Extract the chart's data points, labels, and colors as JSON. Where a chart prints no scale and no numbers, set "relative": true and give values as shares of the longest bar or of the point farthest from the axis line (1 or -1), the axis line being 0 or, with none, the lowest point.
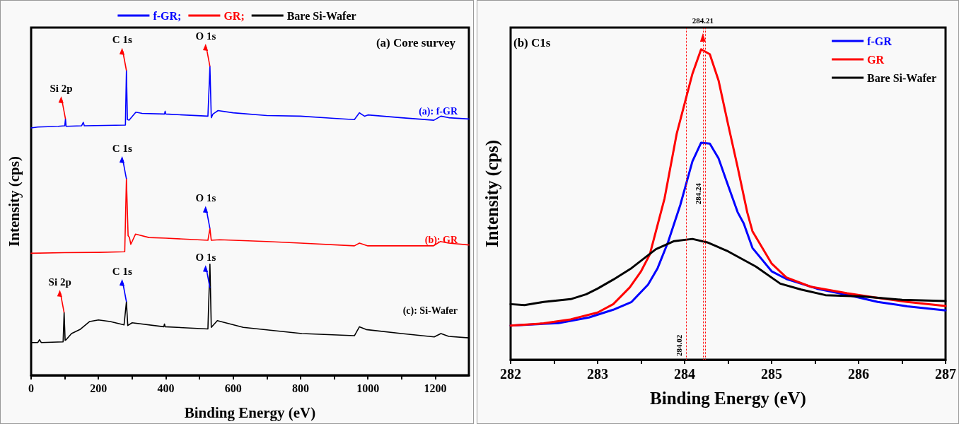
{
  "chart_data": [
    {
      "type": "line",
      "title": "(a) Core survey",
      "xlabel": "Binding Energy (eV)",
      "ylabel": "Intensity (cps)",
      "relative": true,
      "legend": "top",
      "xlim": [
        0,
        1300
      ],
      "xticks": [
        0,
        {
          "value": 100,
          "label": null
        },
        200,
        {
          "value": 300,
          "label": null
        },
        400,
        {
          "value": 500,
          "label": null
        },
        600,
        {
          "value": 700,
          "label": null
        },
        800,
        {
          "value": 900,
          "label": null
        },
        1000,
        {
          "value": 1100,
          "label": null
        },
        1200
      ],
      "series": [
        {
          "name": "f-GR;",
          "color": "#0000ff",
          "x": [
            0,
            20,
            80,
            100,
            102,
            104,
            150,
            155,
            158,
            280,
            283,
            286,
            291,
            311,
            330,
            396,
            398,
            400,
            525,
            531,
            535,
            540,
            555,
            600,
            700,
            800,
            900,
            960,
            975,
            990,
            1000,
            1100,
            1196,
            1217,
            1240,
            1300
          ],
          "values": [
            0.801,
            0.804,
            0.806,
            0.808,
            0.83,
            0.806,
            0.808,
            0.819,
            0.808,
            0.81,
            0.987,
            0.828,
            0.826,
            0.852,
            0.848,
            0.846,
            0.855,
            0.846,
            0.839,
            1.0,
            0.834,
            0.846,
            0.857,
            0.85,
            0.841,
            0.839,
            0.832,
            0.828,
            0.85,
            0.839,
            0.843,
            0.834,
            0.826,
            0.839,
            0.834,
            0.83
          ]
        },
        {
          "name": "GR;",
          "color": "#ff0000",
          "x": [
            0,
            100,
            200,
            278,
            283,
            288,
            292,
            296,
            310,
            350,
            400,
            525,
            531,
            535,
            560,
            700,
            800,
            960,
            975,
            1000,
            1100,
            1195,
            1215,
            1240,
            1300
          ],
          "values": [
            0.395,
            0.397,
            0.398,
            0.4,
            0.636,
            0.452,
            0.446,
            0.424,
            0.457,
            0.446,
            0.444,
            0.437,
            0.475,
            0.437,
            0.439,
            0.433,
            0.428,
            0.419,
            0.428,
            0.419,
            0.419,
            0.419,
            0.433,
            0.428,
            0.422
          ]
        },
        {
          "name": "Bare Si-Wafer",
          "color": "#000000",
          "x": [
            0,
            20,
            25,
            30,
            95,
            98,
            101,
            104,
            120,
            145,
            174,
            200,
            235,
            276,
            283,
            287,
            300,
            394,
            396,
            398,
            525,
            531,
            535,
            553,
            630,
            804,
            960,
            975,
            995,
            1100,
            1197,
            1217,
            1240,
            1300
          ],
          "values": [
            0.106,
            0.106,
            0.115,
            0.106,
            0.108,
            0.203,
            0.113,
            0.115,
            0.135,
            0.148,
            0.174,
            0.179,
            0.174,
            0.163,
            0.238,
            0.161,
            0.17,
            0.157,
            0.166,
            0.157,
            0.15,
            0.36,
            0.155,
            0.177,
            0.155,
            0.135,
            0.128,
            0.157,
            0.148,
            0.135,
            0.124,
            0.135,
            0.126,
            0.121
          ]
        }
      ],
      "annotations": [
        {
          "text": "Si 2p",
          "x": 102,
          "y": 0.83
        },
        {
          "text": "C 1s",
          "x": 283,
          "y": 0.987
        },
        {
          "text": "O 1s",
          "x": 531,
          "y": 1.0
        },
        {
          "text": "C 1s",
          "x": 283,
          "y": 0.636
        },
        {
          "text": "O 1s",
          "x": 531,
          "y": 0.475
        },
        {
          "text": "Si 2p",
          "x": 98,
          "y": 0.203
        },
        {
          "text": "C 1s",
          "x": 283,
          "y": 0.238
        },
        {
          "text": "O 1s",
          "x": 531,
          "y": 0.283
        },
        "(a): f-GR",
        "(b): GR",
        "(c): Si-Wafer"
      ]
    },
    {
      "type": "line",
      "title": "(b) C1s",
      "xlabel": "Binding Energy (eV)",
      "ylabel": "Intensity (cps)",
      "relative": true,
      "legend": "top right",
      "xlim": [
        282,
        287
      ],
      "xticks": [
        282,
        {
          "value": 282.5,
          "label": null
        },
        283,
        {
          "value": 283.5,
          "label": null
        },
        284,
        {
          "value": 284.5,
          "label": null
        },
        285,
        {
          "value": 285.5,
          "label": null
        },
        286,
        {
          "value": 286.5,
          "label": null
        },
        287
      ],
      "series": [
        {
          "name": "f-GR",
          "color": "#0000ff",
          "x": [
            282.0,
            282.55,
            282.9,
            283.18,
            283.39,
            283.58,
            283.69,
            283.81,
            283.95,
            284.09,
            284.19,
            284.29,
            284.39,
            284.5,
            284.61,
            284.68,
            284.78,
            285.0,
            285.17,
            285.52,
            285.87,
            286.22,
            286.56,
            287.0
          ],
          "values": [
            0.11,
            0.118,
            0.136,
            0.161,
            0.186,
            0.242,
            0.295,
            0.379,
            0.498,
            0.639,
            0.699,
            0.696,
            0.649,
            0.561,
            0.475,
            0.439,
            0.36,
            0.285,
            0.26,
            0.229,
            0.209,
            0.186,
            0.172,
            0.159
          ]
        },
        {
          "name": "GR",
          "color": "#ff0000",
          "x": [
            282.0,
            282.38,
            282.69,
            283.0,
            283.18,
            283.37,
            283.5,
            283.6,
            283.77,
            283.91,
            284.09,
            284.19,
            284.29,
            284.39,
            284.5,
            284.61,
            284.72,
            284.78,
            285.0,
            285.17,
            285.45,
            285.87,
            286.22,
            286.56,
            287.0
          ],
          "values": [
            0.11,
            0.117,
            0.13,
            0.152,
            0.179,
            0.233,
            0.285,
            0.339,
            0.52,
            0.729,
            0.921,
            1.0,
            0.984,
            0.9,
            0.758,
            0.62,
            0.475,
            0.414,
            0.31,
            0.265,
            0.235,
            0.214,
            0.199,
            0.186,
            0.173
          ]
        },
        {
          "name": "Bare Si-Wafer",
          "color": "#000000",
          "x": [
            282.0,
            282.16,
            282.38,
            282.69,
            282.87,
            283.0,
            283.18,
            283.39,
            283.67,
            283.88,
            284.09,
            284.26,
            284.5,
            284.82,
            285.1,
            285.34,
            285.62,
            286.04,
            286.5,
            287.0
          ],
          "values": [
            0.179,
            0.176,
            0.186,
            0.195,
            0.211,
            0.229,
            0.258,
            0.295,
            0.356,
            0.382,
            0.389,
            0.378,
            0.349,
            0.3,
            0.245,
            0.226,
            0.208,
            0.204,
            0.193,
            0.189
          ]
        }
      ],
      "ref_lines": [
        {
          "axis": "x",
          "value": 284.21,
          "label": "284.21",
          "color": "#ff0000",
          "line_style": "dotted"
        },
        {
          "axis": "x",
          "value": 284.24,
          "label": "284.24",
          "color": "#ff0000",
          "line_style": "dotted"
        },
        {
          "axis": "x",
          "value": 284.02,
          "label": "284.02",
          "color": "#ff0000",
          "line_style": "dotted"
        }
      ]
    }
  ]
}
